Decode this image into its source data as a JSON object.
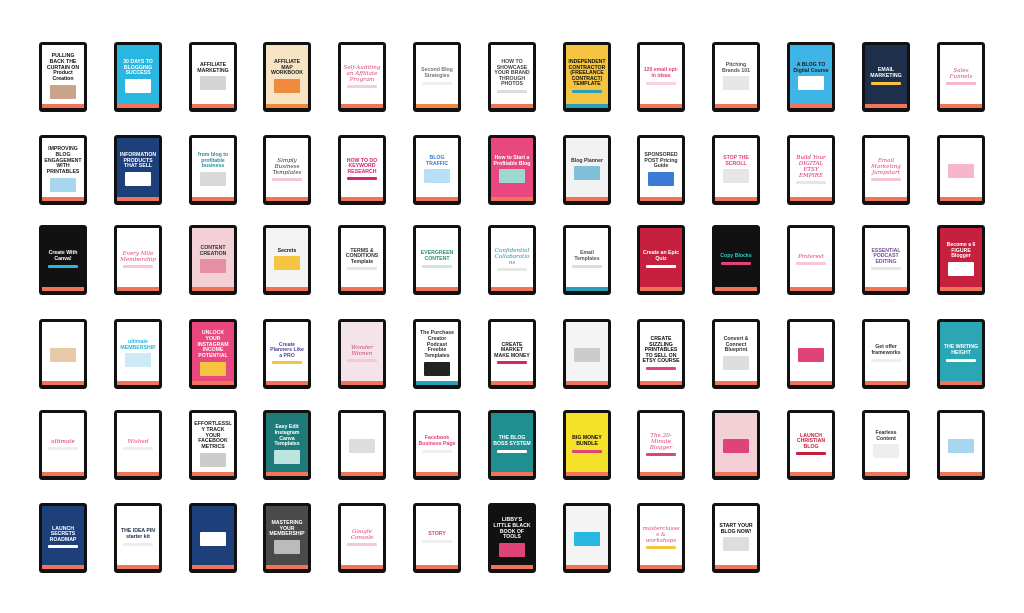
{
  "covers": [
    {
      "text": "PULLING BACK THE CURTAIN ON Product Creation",
      "bg": "#ffffff",
      "fg": "#111111",
      "band": "#f0745a",
      "deco": "#c9a38a",
      "style": "box"
    },
    {
      "text": "30 DAYS TO BLOGGING SUCCESS",
      "bg": "#29b6e0",
      "fg": "#ffffff",
      "band": "#f0745a",
      "deco": "#ffffff",
      "style": "box"
    },
    {
      "text": "AFFILIATE MARKETING",
      "bg": "#ffffff",
      "fg": "#222222",
      "band": "#f0745a",
      "deco": "#d4d4d4",
      "style": "box"
    },
    {
      "text": "AFFILIATE MAP WORKBOOK",
      "bg": "#f7e4c4",
      "fg": "#222222",
      "band": "#f08a3c",
      "deco": "#f08a3c",
      "style": "box"
    },
    {
      "text": "Self-Auditing an Affiliate Program",
      "bg": "#ffffff",
      "fg": "#e0427a",
      "band": "#f0745a",
      "deco": "#f0d0dc",
      "style": "script"
    },
    {
      "text": "Second Blog Strategies",
      "bg": "#ffffff",
      "fg": "#777777",
      "band": "#f08a3c",
      "deco": "#eeeeee",
      "style": "plain"
    },
    {
      "text": "HOW TO SHOWCASE YOUR BRAND THROUGH PHOTOS",
      "bg": "#ffffff",
      "fg": "#444444",
      "band": "#f0745a",
      "deco": "#dddddd",
      "style": "plain"
    },
    {
      "text": "INDEPENDENT CONTRACTOR (FREELANCE CONTRACT) TEMPLATE",
      "bg": "#f5c542",
      "fg": "#111111",
      "band": "#2a9fb8",
      "deco": "#2a9fb8",
      "style": "plain"
    },
    {
      "text": "120 email opt-in ideas",
      "bg": "#ffffff",
      "fg": "#e0427a",
      "band": "#f0745a",
      "deco": "#fbd3df",
      "style": "plain"
    },
    {
      "text": "Pitching Brands 101",
      "bg": "#ffffff",
      "fg": "#555555",
      "band": "#f0745a",
      "deco": "#e6e6e6",
      "style": "box"
    },
    {
      "text": "A BLOG TO Digital Course",
      "bg": "#3fb4e6",
      "fg": "#222222",
      "band": "#f0745a",
      "deco": "#ffffff",
      "style": "box"
    },
    {
      "text": "EMAIL MARKETING",
      "bg": "#1d2f4a",
      "fg": "#ffffff",
      "band": "#f0745a",
      "deco": "#f5c542",
      "style": "plain"
    },
    {
      "text": "Sales Funnels",
      "bg": "#ffffff",
      "fg": "#e0427a",
      "band": "#f0745a",
      "deco": "#f6b7cc",
      "style": "script"
    },
    {
      "text": "IMPROVING BLOG ENGAGEMENT WITH PRINTABLES",
      "bg": "#ffffff",
      "fg": "#222222",
      "band": "#f0745a",
      "deco": "#a9d6ef",
      "style": "box"
    },
    {
      "text": "INFORMATION PRODUCTS THAT SELL",
      "bg": "#1d3f7a",
      "fg": "#ffffff",
      "band": "#f0745a",
      "deco": "#ffffff",
      "style": "box"
    },
    {
      "text": "from blog to profitable business",
      "bg": "#ffffff",
      "fg": "#2a8f9f",
      "band": "#f0745a",
      "deco": "#d9d9d9",
      "style": "box"
    },
    {
      "text": "Simply Business Templates",
      "bg": "#ffffff",
      "fg": "#333333",
      "band": "#f0745a",
      "deco": "#f6c8d6",
      "style": "script"
    },
    {
      "text": "HOW TO DO KEYWORD RESEARCH",
      "bg": "#ffffff",
      "fg": "#d6246e",
      "band": "#f0745a",
      "deco": "#d6246e",
      "style": "plain"
    },
    {
      "text": "BLOG TRAFFIC",
      "bg": "#ffffff",
      "fg": "#3a7bd5",
      "band": "#f0745a",
      "deco": "#b8e0f5",
      "style": "box"
    },
    {
      "text": "How to Start a Profitable Blog",
      "bg": "#e8477f",
      "fg": "#ffffff",
      "band": "#f0745a",
      "deco": "#9fd8d0",
      "style": "box"
    },
    {
      "text": "Blog Planner",
      "bg": "#f2f2f2",
      "fg": "#333333",
      "band": "#f0745a",
      "deco": "#7fbfd8",
      "style": "box"
    },
    {
      "text": "SPONSORED POST Pricing Guide",
      "bg": "#ffffff",
      "fg": "#333333",
      "band": "#f0745a",
      "deco": "#3a7bd5",
      "style": "box"
    },
    {
      "text": "STOP THE SCROLL",
      "bg": "#ffffff",
      "fg": "#e0427a",
      "band": "#f0745a",
      "deco": "#e6e6e6",
      "style": "box"
    },
    {
      "text": "Build Your DIGITAL ETSY EMPIRE",
      "bg": "#ffffff",
      "fg": "#d6246e",
      "band": "#f0745a",
      "deco": "#e6e6e6",
      "style": "script"
    },
    {
      "text": "Email Marketing Jumpstart",
      "bg": "#ffffff",
      "fg": "#e0427a",
      "band": "#f0745a",
      "deco": "#f6c8d6",
      "style": "script"
    },
    {
      "text": "",
      "bg": "#ffffff",
      "fg": "#333333",
      "band": "#f0745a",
      "deco": "#f6b7cc",
      "style": "box"
    },
    {
      "text": "Create With Canva!",
      "bg": "#111111",
      "fg": "#ffffff",
      "band": "#f0745a",
      "deco": "#29b6e0",
      "style": "plain"
    },
    {
      "text": "Every Mile Membership",
      "bg": "#ffffff",
      "fg": "#e0427a",
      "band": "#f0745a",
      "deco": "#f6c8d6",
      "style": "script"
    },
    {
      "text": "CONTENT CREATION",
      "bg": "#f3cfd6",
      "fg": "#333333",
      "band": "#f0745a",
      "deco": "#e88ea3",
      "style": "box"
    },
    {
      "text": "Secrets",
      "bg": "#f4f4f4",
      "fg": "#222222",
      "band": "#f0745a",
      "deco": "#f5c542",
      "style": "box"
    },
    {
      "text": "TERMS & CONDITIONS Template",
      "bg": "#ffffff",
      "fg": "#333333",
      "band": "#f0745a",
      "deco": "#e6e6e6",
      "style": "plain"
    },
    {
      "text": "EVERGREEN CONTENT",
      "bg": "#ffffff",
      "fg": "#2a8f6f",
      "band": "#f0745a",
      "deco": "#cfe6d9",
      "style": "plain"
    },
    {
      "text": "Confidential Collaborations",
      "bg": "#ffffff",
      "fg": "#2a8f9f",
      "band": "#f0745a",
      "deco": "#e6e6e6",
      "style": "script"
    },
    {
      "text": "Email Templates",
      "bg": "#ffffff",
      "fg": "#555555",
      "band": "#2a9fb8",
      "deco": "#dddddd",
      "style": "plain"
    },
    {
      "text": "Create an Epic Quiz",
      "bg": "#c7203f",
      "fg": "#ffffff",
      "band": "#f0745a",
      "deco": "#ffffff",
      "style": "plain"
    },
    {
      "text": "Copy Blocks",
      "bg": "#111111",
      "fg": "#29d0c6",
      "band": "#f0745a",
      "deco": "#e0427a",
      "style": "plain"
    },
    {
      "text": "Pinterest",
      "bg": "#ffffff",
      "fg": "#e0427a",
      "band": "#f0745a",
      "deco": "#f6c8d6",
      "style": "script"
    },
    {
      "text": "ESSENTIAL PODCAST EDITING",
      "bg": "#ffffff",
      "fg": "#7a4fa0",
      "band": "#f0745a",
      "deco": "#e6e6e6",
      "style": "plain"
    },
    {
      "text": "Become a 6 FIGURE Blogger",
      "bg": "#c7203f",
      "fg": "#ffffff",
      "band": "#f0745a",
      "deco": "#ffffff",
      "style": "box"
    },
    {
      "text": "",
      "bg": "#ffffff",
      "fg": "#333333",
      "band": "#f0745a",
      "deco": "#e7c9a8",
      "style": "box"
    },
    {
      "text": "ultimate MEMBERSHIP",
      "bg": "#ffffff",
      "fg": "#29b6e0",
      "band": "#f0745a",
      "deco": "#cdeaf7",
      "style": "box"
    },
    {
      "text": "UNLOCK YOUR INSTAGRAM INCOME POTENTIAL",
      "bg": "#e8477f",
      "fg": "#ffffff",
      "band": "#f0745a",
      "deco": "#f5c542",
      "style": "box"
    },
    {
      "text": "Create Planners Like a PRO",
      "bg": "#ffffff",
      "fg": "#5b3fa0",
      "band": "#f0745a",
      "deco": "#f5c542",
      "style": "plain"
    },
    {
      "text": "Wonder Women",
      "bg": "#f4e4ea",
      "fg": "#c44d7a",
      "band": "#f0745a",
      "deco": "#f6c8d6",
      "style": "script"
    },
    {
      "text": "The Purchase Creator Podcast Freebie Templates",
      "bg": "#ffffff",
      "fg": "#333333",
      "band": "#2a9fb8",
      "deco": "#222222",
      "style": "box"
    },
    {
      "text": "CREATE MARKET MAKE MONEY",
      "bg": "#ffffff",
      "fg": "#222222",
      "band": "#f0745a",
      "deco": "#d6246e",
      "style": "plain"
    },
    {
      "text": "",
      "bg": "#f4f4f4",
      "fg": "#333333",
      "band": "#f0745a",
      "deco": "#cccccc",
      "style": "box"
    },
    {
      "text": "CREATE SIZZLING PRINTABLES TO SELL ON ETSY COURSE",
      "bg": "#ffffff",
      "fg": "#111111",
      "band": "#f0745a",
      "deco": "#e0427a",
      "style": "plain"
    },
    {
      "text": "Convert & Connect Blueprint",
      "bg": "#ffffff",
      "fg": "#333333",
      "band": "#f0745a",
      "deco": "#dddddd",
      "style": "box"
    },
    {
      "text": "",
      "bg": "#ffffff",
      "fg": "#333333",
      "band": "#f0745a",
      "deco": "#e0427a",
      "style": "box"
    },
    {
      "text": "Get offer frameworks",
      "bg": "#ffffff",
      "fg": "#333333",
      "band": "#f0745a",
      "deco": "#eeeeee",
      "style": "plain"
    },
    {
      "text": "THE WRITING HEIGHT",
      "bg": "#2aa6b4",
      "fg": "#ffffff",
      "band": "#f0745a",
      "deco": "#ffffff",
      "style": "plain"
    },
    {
      "text": "ultimate",
      "bg": "#ffffff",
      "fg": "#d6246e",
      "band": "#f0745a",
      "deco": "#eeeeee",
      "style": "script"
    },
    {
      "text": "Wished",
      "bg": "#ffffff",
      "fg": "#e0427a",
      "band": "#f0745a",
      "deco": "#eeeeee",
      "style": "script"
    },
    {
      "text": "EFFORTLESSLY TRACK YOUR FACEBOOK METRICS",
      "bg": "#ffffff",
      "fg": "#222222",
      "band": "#f0745a",
      "deco": "#cccccc",
      "style": "box"
    },
    {
      "text": "Easy Edit Instagram Canva Templates",
      "bg": "#1f7a7a",
      "fg": "#ffffff",
      "band": "#f0745a",
      "deco": "#bde5e0",
      "style": "box"
    },
    {
      "text": "",
      "bg": "#ffffff",
      "fg": "#333333",
      "band": "#f0745a",
      "deco": "#dddddd",
      "style": "box"
    },
    {
      "text": "Facebook Business Page",
      "bg": "#ffffff",
      "fg": "#e0427a",
      "band": "#f0745a",
      "deco": "#eeeeee",
      "style": "plain"
    },
    {
      "text": "THE BLOG BOSS SYSTEM",
      "bg": "#1f8f8f",
      "fg": "#ffffff",
      "band": "#f0745a",
      "deco": "#ffffff",
      "style": "plain"
    },
    {
      "text": "BIG MONEY BUNDLE",
      "bg": "#f5e02a",
      "fg": "#111111",
      "band": "#f0745a",
      "deco": "#e0427a",
      "style": "plain"
    },
    {
      "text": "The 20-Minute Blogger",
      "bg": "#ffffff",
      "fg": "#e0427a",
      "band": "#f0745a",
      "deco": "#e0427a",
      "style": "script"
    },
    {
      "text": "",
      "bg": "#f3cfd6",
      "fg": "#333333",
      "band": "#f0745a",
      "deco": "#e0427a",
      "style": "box"
    },
    {
      "text": "LAUNCH CHRISTIAN BLOG",
      "bg": "#ffffff",
      "fg": "#c7203f",
      "band": "#f0745a",
      "deco": "#c7203f",
      "style": "plain"
    },
    {
      "text": "Fearless Content",
      "bg": "#ffffff",
      "fg": "#333333",
      "band": "#f0745a",
      "deco": "#eeeeee",
      "style": "box"
    },
    {
      "text": "",
      "bg": "#ffffff",
      "fg": "#333333",
      "band": "#f0745a",
      "deco": "#a9d6ef",
      "style": "box"
    },
    {
      "text": "LAUNCH SECRETS ROADMAP",
      "bg": "#1d3f7a",
      "fg": "#ffffff",
      "band": "#f0745a",
      "deco": "#ffffff",
      "style": "plain"
    },
    {
      "text": "THE IDEA PIN starter kit",
      "bg": "#ffffff",
      "fg": "#1d2f4a",
      "band": "#f0745a",
      "deco": "#eeeeee",
      "style": "plain"
    },
    {
      "text": "",
      "bg": "#1d3f7a",
      "fg": "#ffffff",
      "band": "#f0745a",
      "deco": "#ffffff",
      "style": "box"
    },
    {
      "text": "MASTERING YOUR MEMBERSHIP",
      "bg": "#4a4a4a",
      "fg": "#ffffff",
      "band": "#f0745a",
      "deco": "#bbbbbb",
      "style": "box"
    },
    {
      "text": "Google Console",
      "bg": "#ffffff",
      "fg": "#e0427a",
      "band": "#f0745a",
      "deco": "#f6c8d6",
      "style": "script"
    },
    {
      "text": "STORY",
      "bg": "#ffffff",
      "fg": "#e0427a",
      "band": "#f0745a",
      "deco": "#eeeeee",
      "style": "plain"
    },
    {
      "text": "LIBBY'S LITTLE BLACK BOOK OF TOOLS",
      "bg": "#111111",
      "fg": "#ffffff",
      "band": "#f0745a",
      "deco": "#e0427a",
      "style": "box"
    },
    {
      "text": "",
      "bg": "#f4f4f4",
      "fg": "#333333",
      "band": "#f0745a",
      "deco": "#29b6e0",
      "style": "box"
    },
    {
      "text": "masterclasses & workshops",
      "bg": "#ffffff",
      "fg": "#e0427a",
      "band": "#f0745a",
      "deco": "#f5c542",
      "style": "script"
    },
    {
      "text": "START YOUR BLOG NOW!",
      "bg": "#ffffff",
      "fg": "#111111",
      "band": "#f0745a",
      "deco": "#dddddd",
      "style": "box"
    }
  ]
}
